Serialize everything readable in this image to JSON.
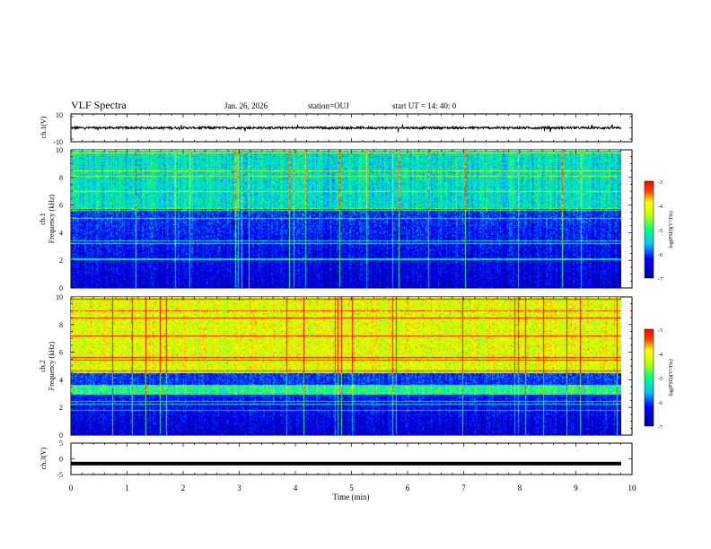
{
  "header": {
    "title": "VLF Spectra",
    "date": "Jan. 26, 2026",
    "station": "station=OUJ",
    "start_ut": "start UT =  14: 40: 0"
  },
  "chart_data": [
    {
      "type": "line",
      "panel": "ch1-waveform",
      "ylabel": "ch.1(V)",
      "ylim": [
        -10,
        10
      ],
      "y_ticks": [
        "10",
        "-10"
      ],
      "xlim": [
        0,
        10
      ],
      "series_approx": {
        "baseline": 0,
        "amplitude_range": [
          -1.5,
          1.5
        ],
        "end_time_min": 9.8
      }
    },
    {
      "type": "heatmap",
      "panel": "ch1-spectrogram",
      "ylabel": "ch.1\nFrequency (kHz)",
      "ylim": [
        0,
        10
      ],
      "y_ticks": [
        "0",
        "2",
        "4",
        "6",
        "8",
        "10"
      ],
      "xlim": [
        0,
        10
      ],
      "colorbar": {
        "label": "log(PSD)(V²/Hz)",
        "ticks": [
          "-3",
          "-4",
          "-5",
          "-6",
          "-7"
        ],
        "range": [
          -7,
          -3
        ]
      },
      "data_end_min": 9.8
    },
    {
      "type": "heatmap",
      "panel": "ch2-spectrogram",
      "ylabel": "ch.2\nFrequency (kHz)",
      "ylim": [
        0,
        10
      ],
      "y_ticks": [
        "0",
        "2",
        "4",
        "6",
        "8",
        "10"
      ],
      "xlim": [
        0,
        10
      ],
      "colorbar": {
        "label": "log(PSD)(V²/Hz)",
        "ticks": [
          "-3",
          "-4",
          "-5",
          "-6",
          "-7"
        ],
        "range": [
          -7,
          -3
        ]
      },
      "data_end_min": 9.8
    },
    {
      "type": "line",
      "panel": "ch3-waveform",
      "ylabel": "ch.3(V)",
      "ylim": [
        -5,
        5
      ],
      "y_ticks": [
        "5",
        "0",
        "-5"
      ],
      "xlim": [
        0,
        10
      ],
      "series_approx": {
        "constant_value": -1.5,
        "end_time_min": 9.8
      }
    }
  ],
  "x_axis": {
    "label": "Time (min)",
    "ticks": [
      "0",
      "1",
      "2",
      "3",
      "4",
      "5",
      "6",
      "7",
      "8",
      "9",
      "10"
    ]
  },
  "colors": {
    "low": "#00008b",
    "mid": "#00ff80",
    "high": "#ff0000"
  }
}
